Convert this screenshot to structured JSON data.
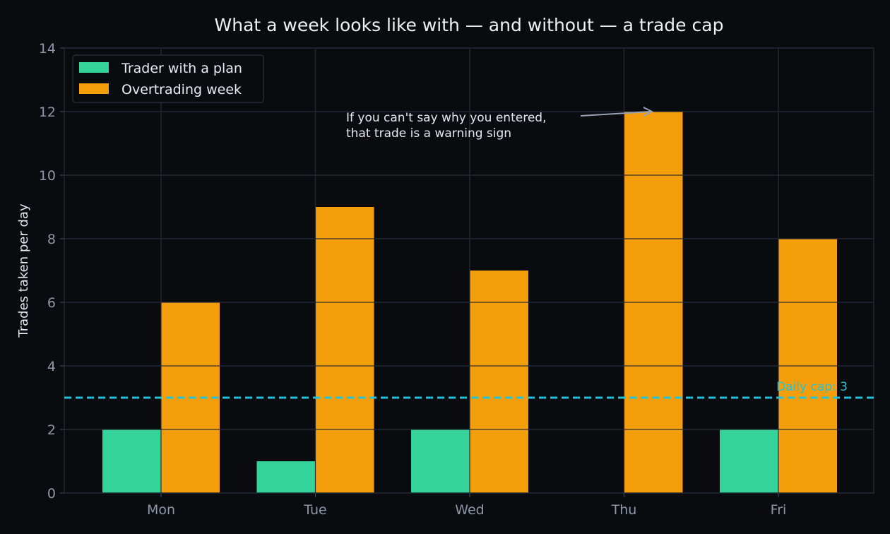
{
  "chart_data": {
    "type": "bar",
    "title": "What a week looks like with — and without — a trade cap",
    "xlabel": "",
    "ylabel": "Trades taken per day",
    "categories": [
      "Mon",
      "Tue",
      "Wed",
      "Thu",
      "Fri"
    ],
    "series": [
      {
        "name": "Trader with a plan",
        "values": [
          2,
          1,
          2,
          0,
          2
        ],
        "color": "#34d399"
      },
      {
        "name": "Overtrading week",
        "values": [
          6,
          9,
          7,
          12,
          8
        ],
        "color": "#f59e0b"
      }
    ],
    "ylim": [
      0,
      14
    ],
    "yticks": [
      0,
      2,
      4,
      6,
      8,
      10,
      12,
      14
    ],
    "grid": true,
    "legend": "top-left",
    "reference_line": {
      "value": 3,
      "label": "Daily cap: 3",
      "color": "#22c3d8",
      "style": "dashed"
    },
    "annotation": {
      "lines": [
        "If you can't say why you entered,",
        "that trade is a warning sign"
      ],
      "points_to": {
        "category": "Thu",
        "series": "Overtrading week",
        "value": 12
      }
    }
  }
}
